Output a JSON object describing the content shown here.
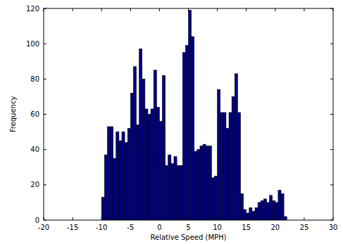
{
  "chart_data": {
    "type": "histogram",
    "xlabel": "Relative Speed (MPH)",
    "ylabel": "Frequency",
    "bins": [
      -10,
      -9.5,
      -9,
      -8.5,
      -8,
      -7.5,
      -7,
      -6.5,
      -6,
      -5.5,
      -5,
      -4.5,
      -4,
      -3.5,
      -3,
      -2.5,
      -2,
      -1.5,
      -1,
      -0.5,
      0,
      0.5,
      1,
      1.5,
      2,
      2.5,
      3,
      3.5,
      4,
      4.5,
      5,
      5.5,
      6,
      6.5,
      7,
      7.5,
      8,
      8.5,
      9,
      9.5,
      10,
      10.5,
      11,
      11.5,
      12,
      12.5,
      13,
      13.5,
      14,
      14.5,
      15,
      15.5,
      16,
      16.5,
      17,
      17.5,
      18,
      18.5,
      19,
      19.5,
      20,
      20.5,
      21,
      21.5,
      22
    ],
    "values": [
      13,
      37,
      53,
      53,
      35,
      50,
      45,
      50,
      44,
      52,
      72,
      87,
      54,
      97,
      80,
      63,
      60,
      63,
      85,
      64,
      56,
      82,
      31,
      37,
      32,
      36,
      31,
      31,
      95,
      99,
      119,
      104,
      39,
      40,
      42,
      43,
      42,
      42,
      24,
      25,
      74,
      61,
      61,
      52,
      61,
      70,
      83,
      61,
      15,
      6,
      4,
      7,
      5,
      7,
      10,
      11,
      12,
      10,
      14,
      11,
      10,
      17,
      15,
      2
    ],
    "color": "#00007f",
    "xlim": [
      -20,
      30
    ],
    "xticks": [
      -20,
      -15,
      -10,
      -5,
      0,
      5,
      10,
      15,
      20,
      25,
      30
    ],
    "ylim": [
      0,
      120
    ],
    "yticks": [
      0,
      20,
      40,
      60,
      80,
      100,
      120
    ],
    "grid": false
  }
}
